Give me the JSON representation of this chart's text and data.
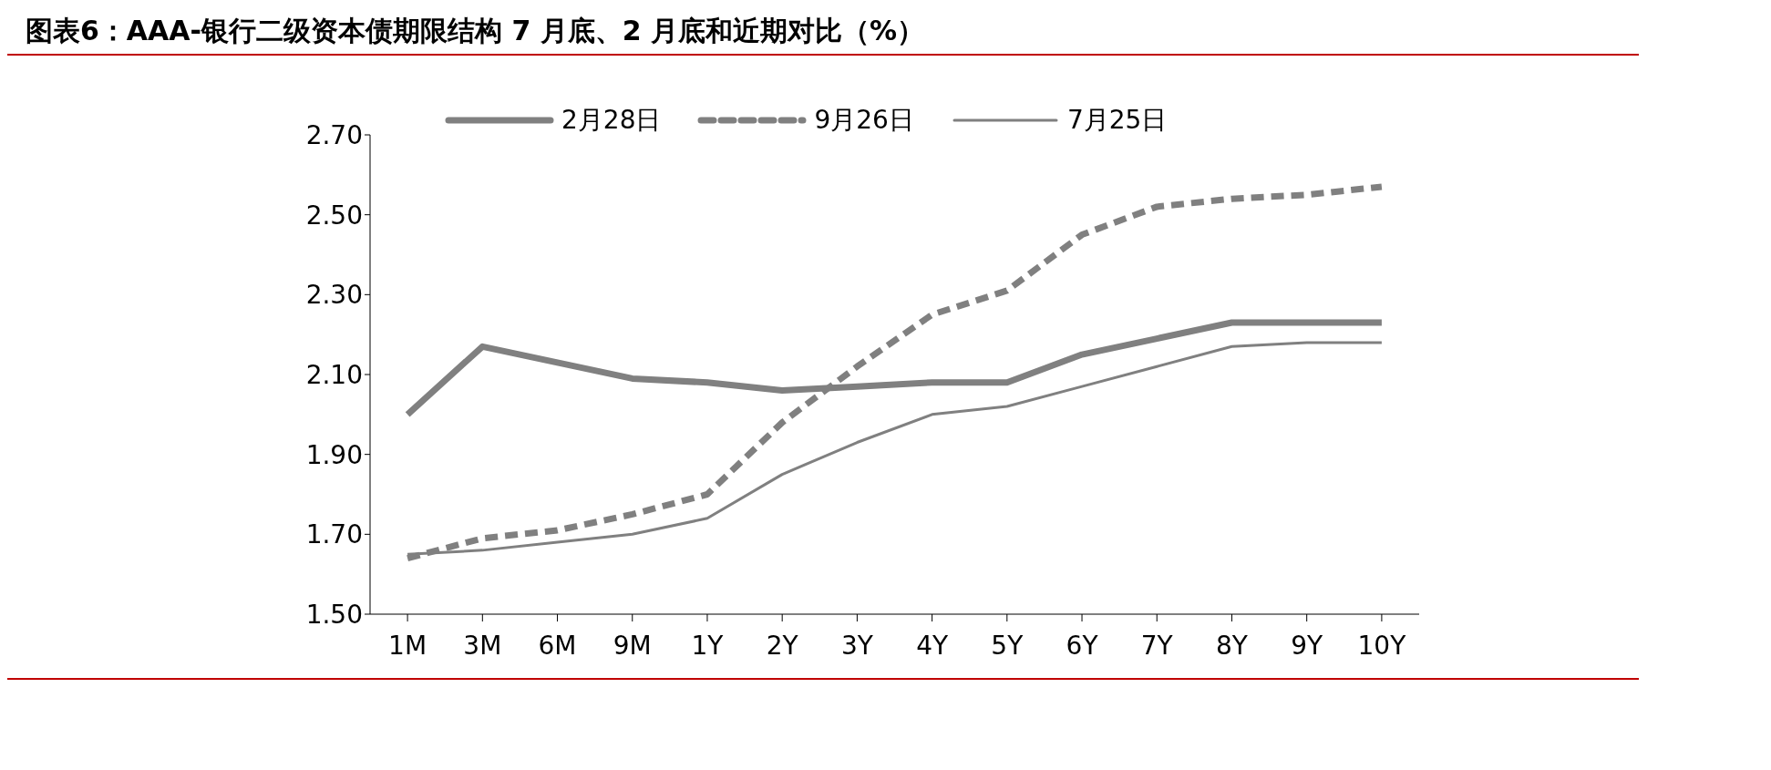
{
  "chart_data": {
    "type": "line",
    "title": "图表6：AAA-银行二级资本债期限结构 7 月底、2 月底和近期对比（%）",
    "categories": [
      "1M",
      "3M",
      "6M",
      "9M",
      "1Y",
      "2Y",
      "3Y",
      "4Y",
      "5Y",
      "6Y",
      "7Y",
      "8Y",
      "9Y",
      "10Y"
    ],
    "series": [
      {
        "name": "2月28日",
        "color": "#808080",
        "line_style": "solid",
        "values": [
          2.0,
          2.17,
          2.13,
          2.09,
          2.08,
          2.06,
          2.07,
          2.08,
          2.08,
          2.15,
          2.19,
          2.23,
          2.23,
          2.23
        ]
      },
      {
        "name": "9月26日",
        "color": "#808080",
        "line_style": "dashed",
        "values": [
          1.64,
          1.69,
          1.71,
          1.75,
          1.8,
          1.98,
          2.12,
          2.25,
          2.31,
          2.45,
          2.52,
          2.54,
          2.55,
          2.57
        ]
      },
      {
        "name": "7月25日",
        "color": "#808080",
        "line_style": "solid",
        "values": [
          1.65,
          1.66,
          1.68,
          1.7,
          1.74,
          1.85,
          1.93,
          2.0,
          2.02,
          2.07,
          2.12,
          2.17,
          2.18,
          2.18
        ]
      }
    ],
    "ylim": [
      1.5,
      2.7
    ],
    "yticks": [
      {
        "value": 1.5,
        "label": "1.50"
      },
      {
        "value": 1.7,
        "label": "1.70"
      },
      {
        "value": 1.9,
        "label": "1.90"
      },
      {
        "value": 2.1,
        "label": "2.10"
      },
      {
        "value": 2.3,
        "label": "2.30"
      },
      {
        "value": 2.5,
        "label": "2.50"
      },
      {
        "value": 2.7,
        "label": "2.70"
      }
    ],
    "grid": false,
    "legend": "top",
    "marker": "none"
  }
}
